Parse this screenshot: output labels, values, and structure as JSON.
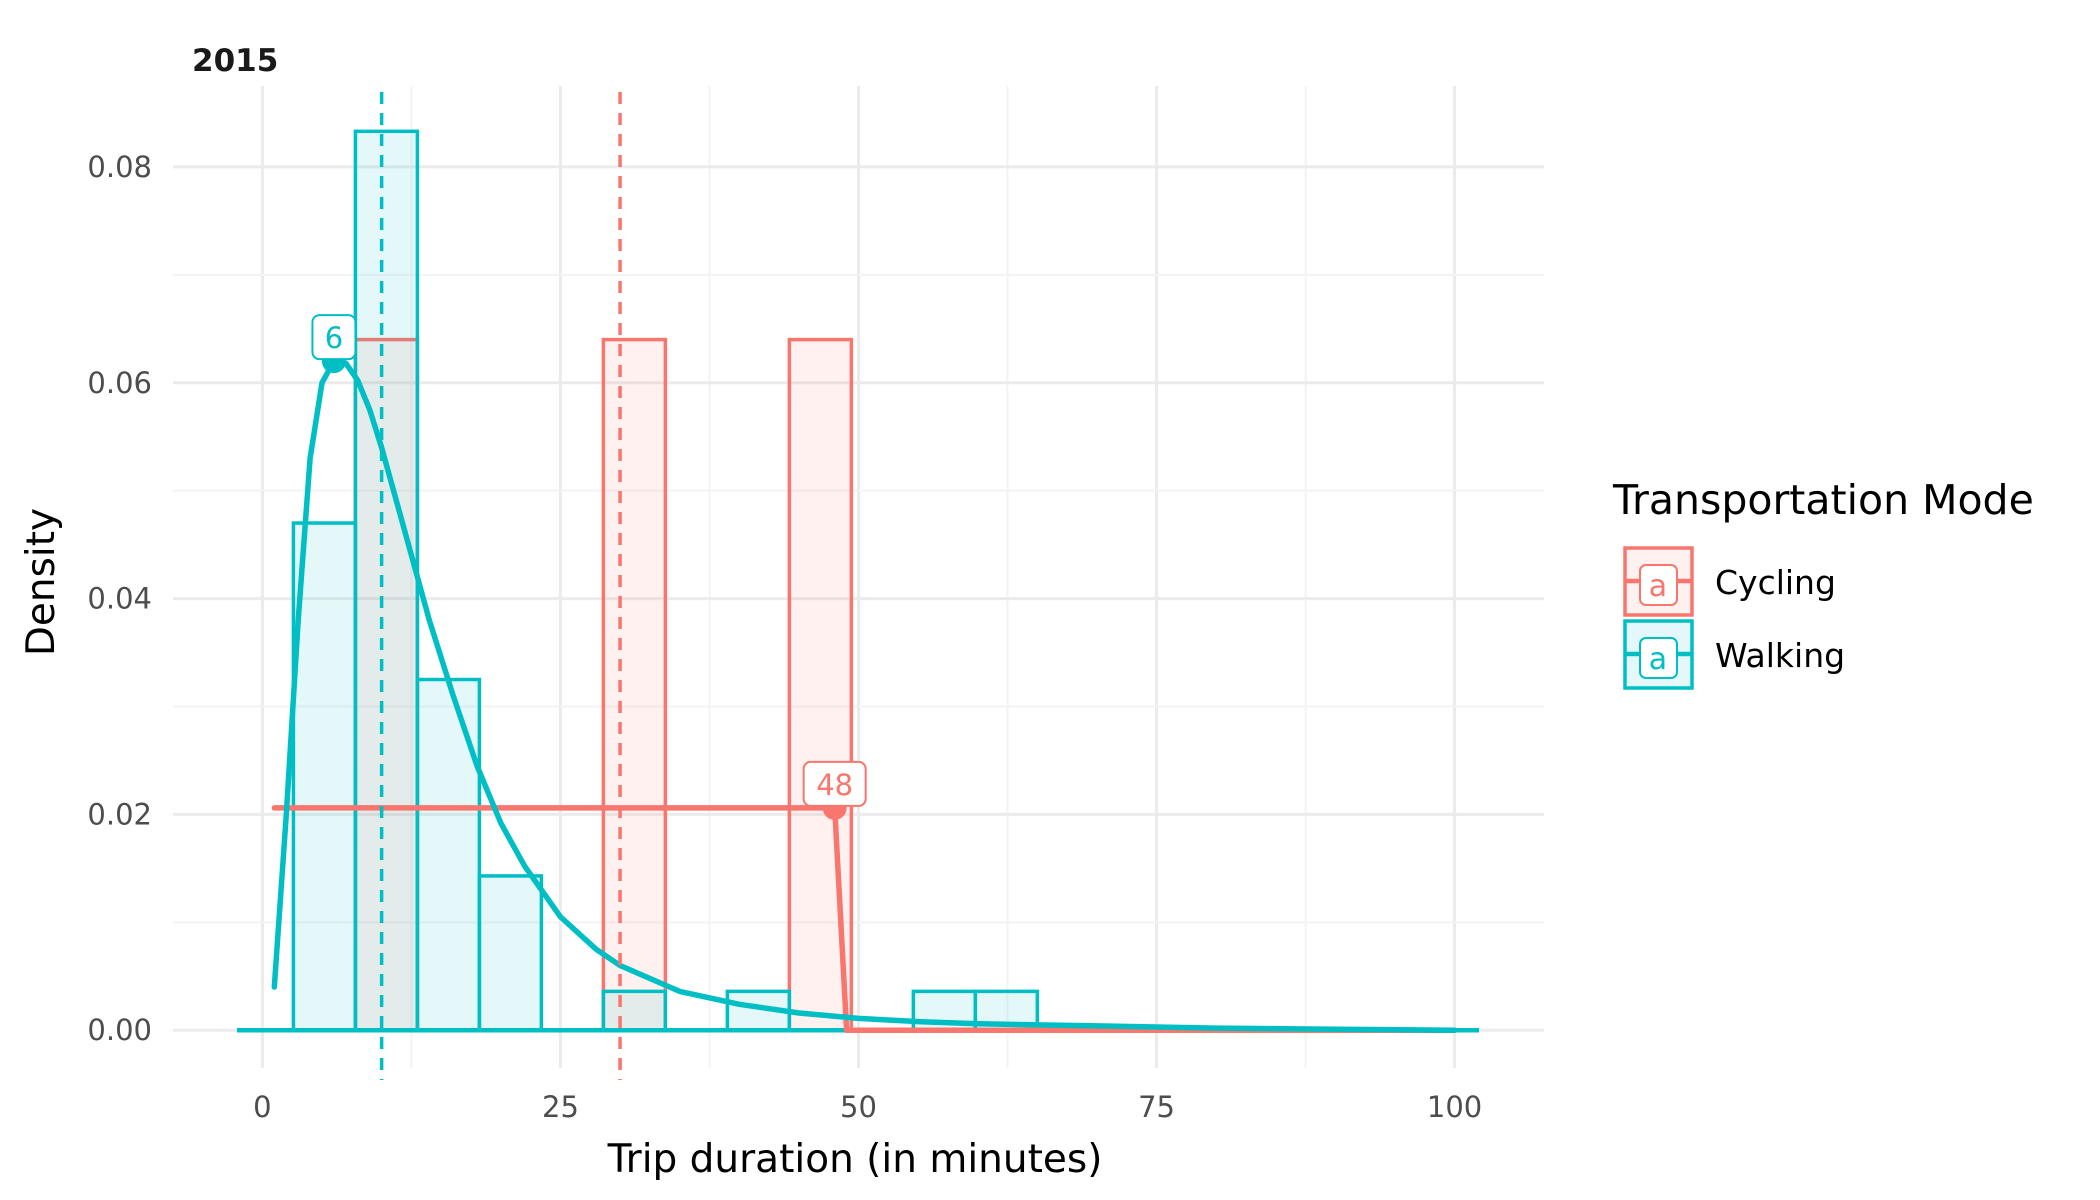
{
  "chart_data": {
    "type": "histogram",
    "title": "2015",
    "xlabel": "Trip duration (in minutes)",
    "ylabel": "Density",
    "xlim": [
      -7.5,
      107.5
    ],
    "ylim": [
      -0.0035,
      0.0875
    ],
    "x_ticks": [
      0,
      25,
      50,
      75,
      100
    ],
    "x_tick_labels": [
      "0",
      "25",
      "50",
      "75",
      "100"
    ],
    "y_ticks": [
      0,
      0.02,
      0.04,
      0.06,
      0.08
    ],
    "y_tick_labels": [
      "0.00",
      "0.02",
      "0.04",
      "0.06",
      "0.08"
    ],
    "grid": true,
    "legend": {
      "title": "Transportation Mode",
      "position": "right",
      "key_glyph_text": "a"
    },
    "bin_width": 5.2,
    "series": [
      {
        "name": "Cycling",
        "color": "#F8766D",
        "bins": [
          {
            "x": 10.4,
            "density": 0.064
          },
          {
            "x": 31.2,
            "density": 0.064
          },
          {
            "x": 46.8,
            "density": 0.064
          }
        ],
        "mean_line_x": 30.0,
        "density_curve": [
          [
            1,
            0.0206
          ],
          [
            5,
            0.0206
          ],
          [
            10,
            0.0206
          ],
          [
            15,
            0.0206
          ],
          [
            20,
            0.0206
          ],
          [
            25,
            0.0206
          ],
          [
            30,
            0.0206
          ],
          [
            35,
            0.0206
          ],
          [
            40,
            0.0206
          ],
          [
            45,
            0.0206
          ],
          [
            48,
            0.0206
          ],
          [
            49,
            0.0
          ],
          [
            55,
            0.0
          ],
          [
            60,
            0.0
          ],
          [
            70,
            0.0
          ],
          [
            80,
            0.0
          ],
          [
            90,
            0.0
          ],
          [
            100,
            0.0
          ]
        ],
        "peak": {
          "x": 48,
          "y": 0.0206,
          "label": "48"
        }
      },
      {
        "name": "Walking",
        "color": "#00BFC4",
        "bins": [
          {
            "x": 5.2,
            "density": 0.047
          },
          {
            "x": 10.4,
            "density": 0.0833
          },
          {
            "x": 15.6,
            "density": 0.0325
          },
          {
            "x": 20.8,
            "density": 0.0143
          },
          {
            "x": 31.2,
            "density": 0.0036
          },
          {
            "x": 41.6,
            "density": 0.0036
          },
          {
            "x": 57.2,
            "density": 0.0036
          },
          {
            "x": 62.4,
            "density": 0.0036
          }
        ],
        "mean_line_x": 10.0,
        "density_curve": [
          [
            1,
            0.004
          ],
          [
            2,
            0.02
          ],
          [
            3,
            0.038
          ],
          [
            4,
            0.053
          ],
          [
            5,
            0.06
          ],
          [
            6,
            0.062
          ],
          [
            7,
            0.0618
          ],
          [
            8,
            0.0602
          ],
          [
            9,
            0.0575
          ],
          [
            10,
            0.054
          ],
          [
            12,
            0.046
          ],
          [
            14,
            0.038
          ],
          [
            16,
            0.031
          ],
          [
            18,
            0.0245
          ],
          [
            20,
            0.0192
          ],
          [
            22,
            0.0152
          ],
          [
            25,
            0.0105
          ],
          [
            28,
            0.0075
          ],
          [
            30,
            0.006
          ],
          [
            35,
            0.0036
          ],
          [
            40,
            0.0024
          ],
          [
            45,
            0.0016
          ],
          [
            50,
            0.0011
          ],
          [
            55,
            0.0008
          ],
          [
            60,
            0.0006
          ],
          [
            70,
            0.0004
          ],
          [
            80,
            0.0002
          ],
          [
            90,
            0.0001
          ],
          [
            100,
            0.0
          ]
        ],
        "peak": {
          "x": 6,
          "y": 0.062,
          "label": "6"
        }
      }
    ]
  }
}
